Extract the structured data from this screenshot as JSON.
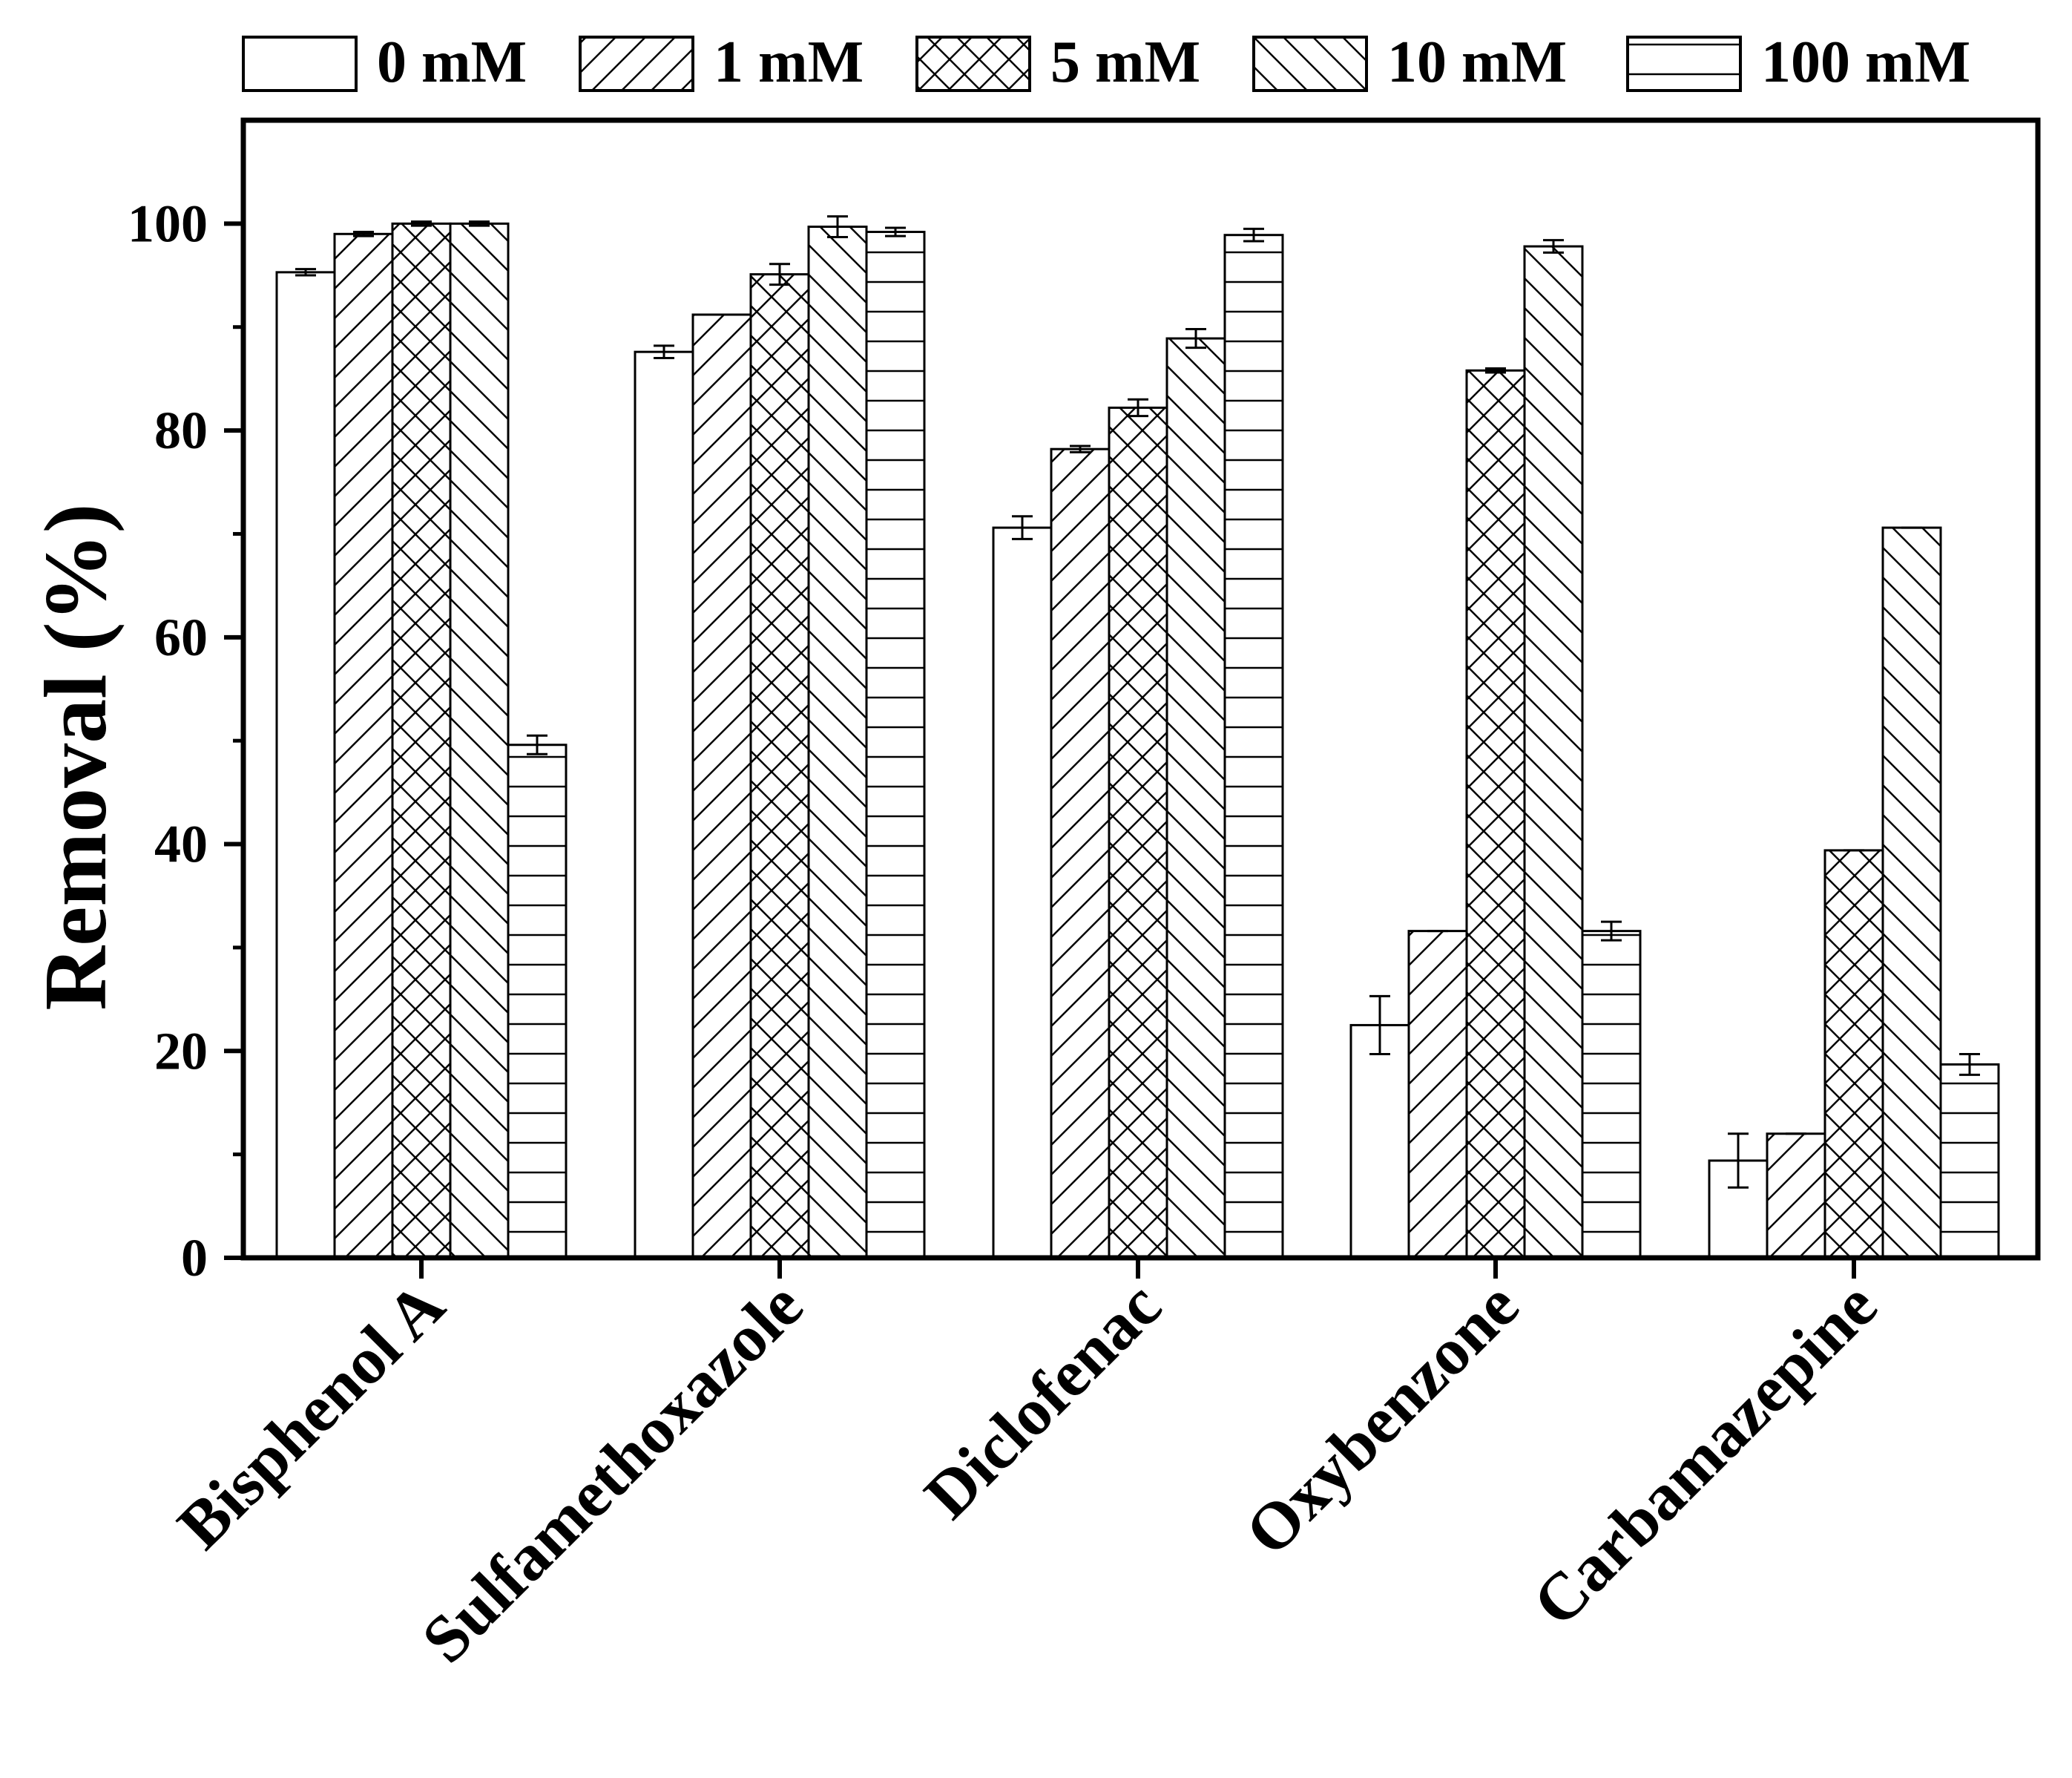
{
  "chart_data": {
    "type": "bar",
    "title": "",
    "xlabel": "",
    "ylabel": "Removal (%)",
    "ylim": [
      0,
      110
    ],
    "yticks": [
      0,
      20,
      40,
      60,
      80,
      100
    ],
    "grid": false,
    "legend_position": "top",
    "categories": [
      "Bisphenol A",
      "Sulfamethoxazole",
      "Diclofenac",
      "Oxybenzone",
      "Carbamazepine"
    ],
    "series": [
      {
        "name": "0 mM",
        "pattern": "none",
        "values": [
          95.3,
          87.6,
          70.6,
          22.5,
          9.4
        ],
        "errors": [
          0.3,
          0.6,
          1.1,
          2.8,
          2.6
        ]
      },
      {
        "name": "1 mM",
        "pattern": "diagonal-forward",
        "values": [
          99.0,
          91.2,
          78.2,
          31.6,
          12.0
        ],
        "errors": [
          0.2,
          0,
          0.3,
          0,
          0
        ]
      },
      {
        "name": "5 mM",
        "pattern": "crosshatch",
        "values": [
          100.0,
          95.1,
          82.2,
          85.8,
          39.4
        ],
        "errors": [
          0.2,
          1.0,
          0.8,
          0.2,
          0
        ]
      },
      {
        "name": "10 mM",
        "pattern": "diagonal-backward",
        "values": [
          100.0,
          99.7,
          88.9,
          97.8,
          70.6
        ],
        "errors": [
          0.2,
          1.0,
          0.9,
          0.6,
          0
        ]
      },
      {
        "name": "100 mM",
        "pattern": "horizontal",
        "values": [
          49.6,
          99.2,
          98.9,
          31.6,
          18.7
        ],
        "errors": [
          0.9,
          0.4,
          0.6,
          0.9,
          1.0
        ]
      }
    ]
  }
}
